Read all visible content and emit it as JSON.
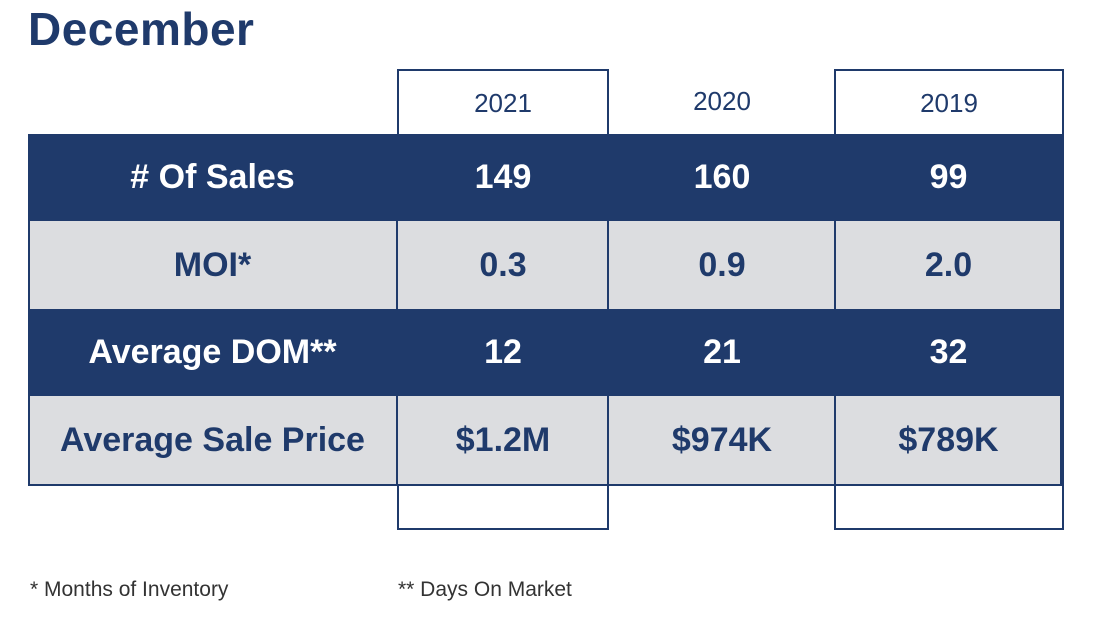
{
  "title": "December",
  "chart_data": {
    "type": "table",
    "columns": [
      "2021",
      "2020",
      "2019"
    ],
    "rows": [
      {
        "label": "# Of Sales",
        "values": [
          "149",
          "160",
          "99"
        ]
      },
      {
        "label": "MOI*",
        "values": [
          "0.3",
          "0.9",
          "2.0"
        ]
      },
      {
        "label": "Average DOM**",
        "values": [
          "12",
          "21",
          "32"
        ]
      },
      {
        "label": "Average Sale Price",
        "values": [
          "$1.2M",
          "$974K",
          "$789K"
        ]
      }
    ]
  },
  "footnotes": [
    "* Months of Inventory",
    "** Days On Market"
  ],
  "colors": {
    "navy": "#1f3a6b",
    "light_gray": "#dcdde0"
  }
}
